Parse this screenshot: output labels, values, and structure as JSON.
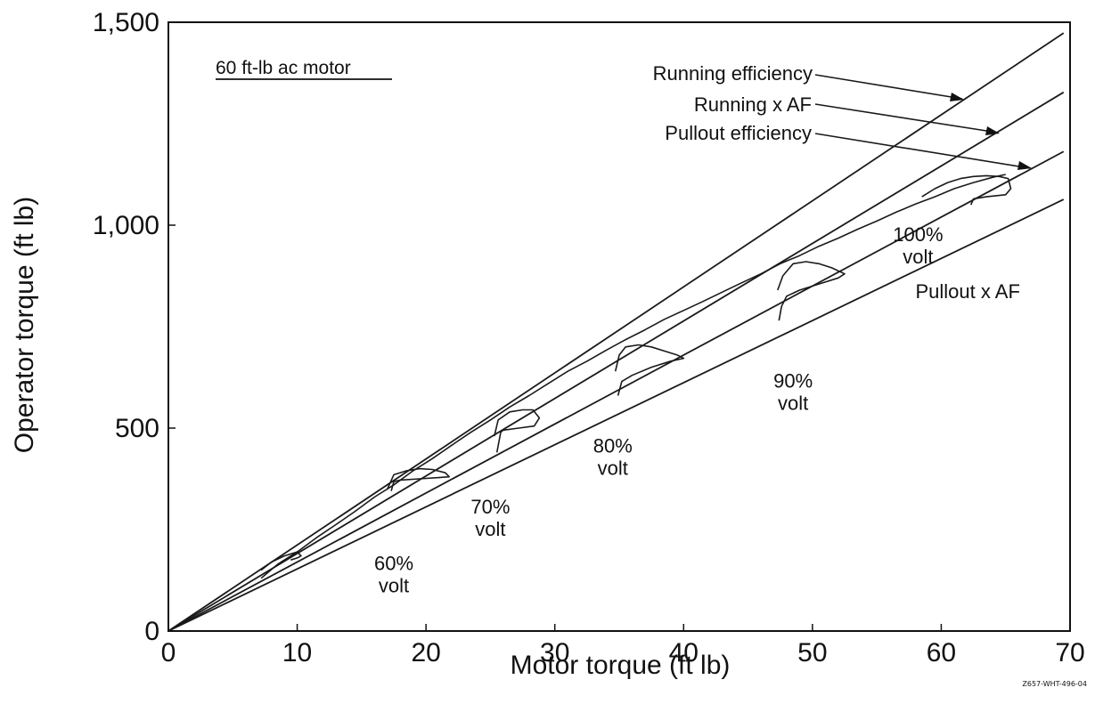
{
  "chart_data": {
    "type": "line",
    "inset_label": "60 ft-lb ac motor",
    "xlabel": "Motor torque (ft lb)",
    "ylabel": "Operator torque (ft lb)",
    "xlim": [
      0,
      70
    ],
    "ylim": [
      0,
      1500
    ],
    "x_ticks": [
      0,
      10,
      20,
      30,
      40,
      50,
      60,
      70
    ],
    "y_ticks": [
      0,
      500,
      1000,
      1500
    ],
    "y_tick_labels": [
      "0",
      "500",
      "1,000",
      "1,500"
    ],
    "grid": false,
    "figure_code": "Z657-WHT-496-04",
    "reference_lines": [
      {
        "name": "Running efficiency",
        "slope": 21.2
      },
      {
        "name": "Running x AF",
        "slope": 19.1
      },
      {
        "name": "Pullout efficiency",
        "slope": 17.0
      },
      {
        "name": "Pullout x AF",
        "slope": 15.3
      }
    ],
    "voltage_annotations": [
      {
        "pct": "60%",
        "unit": "volt",
        "x": 17.5,
        "y": 150
      },
      {
        "pct": "70%",
        "unit": "volt",
        "x": 25.0,
        "y": 290
      },
      {
        "pct": "80%",
        "unit": "volt",
        "x": 34.5,
        "y": 440
      },
      {
        "pct": "90%",
        "unit": "volt",
        "x": 48.5,
        "y": 600
      },
      {
        "pct": "100%",
        "unit": "volt",
        "x": 58.2,
        "y": 960
      }
    ],
    "label_pullout_af": {
      "x": 58.0,
      "y": 820
    },
    "series": [
      {
        "x": [
          7.2,
          8.5,
          10.0,
          11.5,
          13.0,
          14.5,
          16.0,
          17.5,
          19.0,
          20.5,
          22.0,
          23.5,
          25.0,
          26.5,
          28.0,
          29.5,
          31.0,
          32.5,
          34.0,
          35.5,
          37.0,
          38.5,
          40.0,
          41.5,
          43.0,
          44.5,
          46.0,
          47.5,
          49.0,
          50.5,
          52.0,
          53.5,
          55.0,
          56.5,
          58.0,
          59.5,
          61.0,
          62.5,
          64.0,
          65.0
        ],
        "y": [
          130,
          165,
          195,
          230,
          262,
          295,
          330,
          360,
          395,
          425,
          458,
          490,
          520,
          552,
          580,
          610,
          640,
          665,
          692,
          718,
          742,
          768,
          790,
          812,
          835,
          858,
          880,
          905,
          925,
          948,
          968,
          990,
          1010,
          1032,
          1052,
          1070,
          1090,
          1105,
          1118,
          1125
        ]
      },
      {
        "x": [
          7.2,
          8.0,
          9.0,
          10.0,
          10.3,
          10.0,
          9.5
        ],
        "y": [
          150,
          170,
          185,
          195,
          185,
          180,
          175
        ]
      },
      {
        "x": [
          17.0,
          17.5,
          18.5,
          19.5,
          20.5,
          21.5,
          21.8,
          21.0,
          19.5,
          18.0,
          17.5,
          17.3
        ],
        "y": [
          350,
          385,
          395,
          400,
          398,
          390,
          380,
          378,
          375,
          372,
          368,
          345
        ]
      },
      {
        "x": [
          25.3,
          25.6,
          26.5,
          27.5,
          28.3,
          28.8,
          28.4,
          27.2,
          26.0,
          25.8,
          25.5
        ],
        "y": [
          480,
          520,
          540,
          545,
          545,
          525,
          505,
          500,
          495,
          490,
          440
        ]
      },
      {
        "x": [
          34.7,
          35.0,
          35.5,
          36.5,
          37.5,
          38.5,
          39.5,
          40.0,
          39.0,
          37.5,
          36.0,
          35.2,
          34.9
        ],
        "y": [
          640,
          680,
          700,
          705,
          700,
          690,
          680,
          672,
          665,
          650,
          630,
          615,
          580
        ]
      },
      {
        "x": [
          47.3,
          47.7,
          48.5,
          49.5,
          50.5,
          51.5,
          52.5,
          52.0,
          50.5,
          49.0,
          48.0,
          47.6,
          47.4
        ],
        "y": [
          840,
          875,
          905,
          910,
          905,
          895,
          880,
          870,
          855,
          840,
          825,
          800,
          765
        ]
      },
      {
        "x": [
          58.5,
          59.5,
          60.5,
          61.5,
          62.5,
          63.5,
          64.5,
          65.2,
          65.4,
          65.0,
          63.5,
          62.5,
          62.3
        ],
        "y": [
          1070,
          1090,
          1105,
          1115,
          1120,
          1122,
          1120,
          1115,
          1090,
          1075,
          1070,
          1065,
          1050
        ]
      }
    ]
  }
}
